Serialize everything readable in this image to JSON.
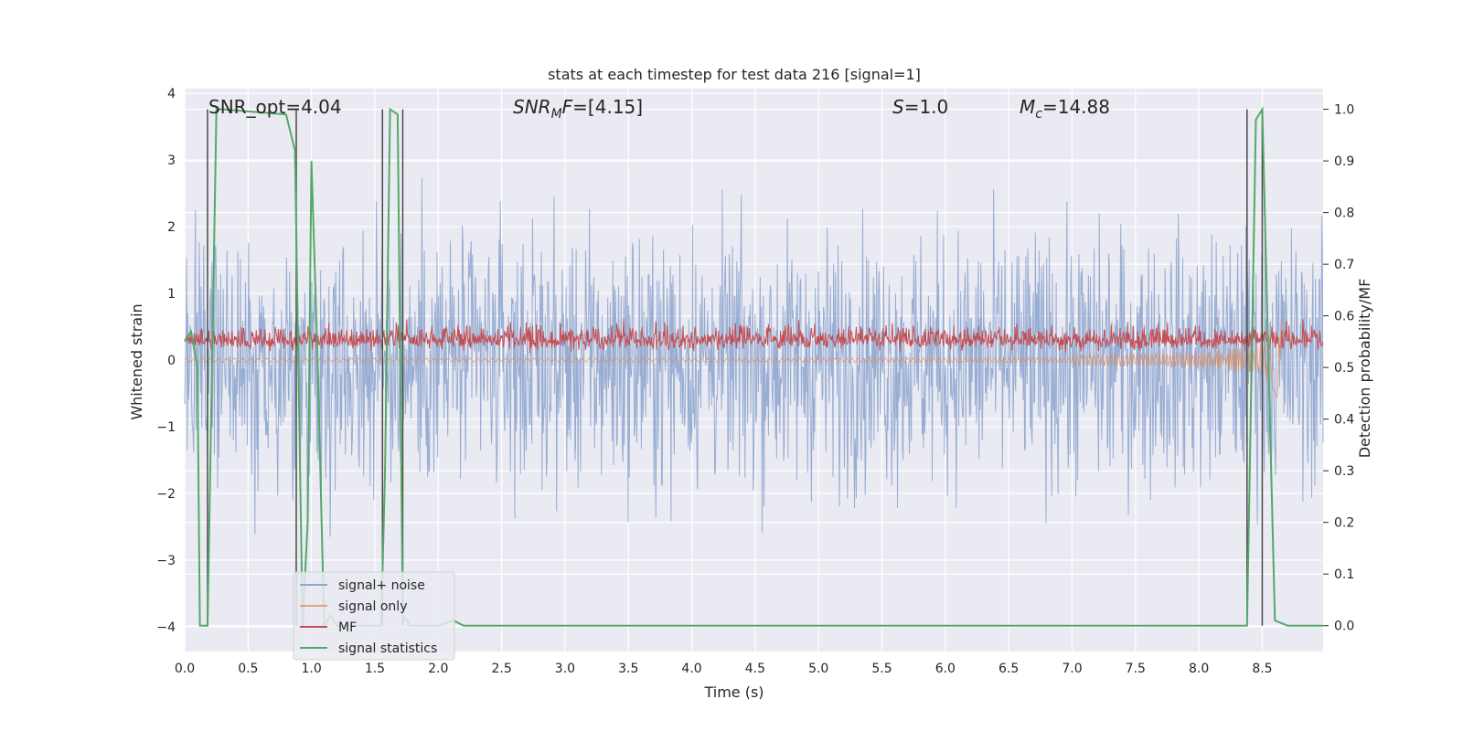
{
  "chart_data": {
    "type": "line",
    "title": "stats at each timestep for test data 216 [signal=1]",
    "xlabel": "Time (s)",
    "ylabel": "Whitened strain",
    "ylabel_right": "Detection probability/MF",
    "xlim": [
      0,
      8.98
    ],
    "ylim": [
      -4.37,
      4.07
    ],
    "ylim_right": [
      -0.05,
      1.04
    ],
    "x_ticks": [
      0.0,
      0.5,
      1.0,
      1.5,
      2.0,
      2.5,
      3.0,
      3.5,
      4.0,
      4.5,
      5.0,
      5.5,
      6.0,
      6.5,
      7.0,
      7.5,
      8.0,
      8.5
    ],
    "x_tick_labels": [
      "0.0",
      "0.5",
      "1.0",
      "1.5",
      "2.0",
      "2.5",
      "3.0",
      "3.5",
      "4.0",
      "4.5",
      "5.0",
      "5.5",
      "6.0",
      "6.5",
      "7.0",
      "7.5",
      "8.0",
      "8.5"
    ],
    "y_ticks": [
      -4,
      -3,
      -2,
      -1,
      0,
      1,
      2,
      3,
      4
    ],
    "y_tick_labels": [
      "−4",
      "−3",
      "−2",
      "−1",
      "0",
      "1",
      "2",
      "3",
      "4"
    ],
    "y_right_ticks": [
      0.0,
      0.1,
      0.2,
      0.3,
      0.4,
      0.5,
      0.6,
      0.7,
      0.8,
      0.9,
      1.0
    ],
    "y_right_tick_labels": [
      "0.0",
      "0.1",
      "0.2",
      "0.3",
      "0.4",
      "0.5",
      "0.6",
      "0.7",
      "0.8",
      "0.9",
      "1.0"
    ],
    "grid": true,
    "annotations": {
      "snr_opt": "SNR_opt=4.04",
      "snr_mf_italic": "SNR",
      "snr_mf_sub": "M",
      "snr_mf_italic2": "F",
      "snr_mf_value": "=[4.15]",
      "s_italic": "S",
      "s_value": "=1.0",
      "mc_italic": "M",
      "mc_sub": "c",
      "mc_value": "=14.88"
    },
    "legend": {
      "placement": "lower-left",
      "entries": [
        "signal+ noise",
        "signal only",
        "MF",
        "signal statistics"
      ]
    },
    "colors": {
      "signal_noise": "#8fa6cf",
      "signal_only": "#dd8452",
      "mf": "#c44e52",
      "stats": "#55a868",
      "vlines": "#4a4a4a",
      "background": "#eaeaf2",
      "grid": "#ffffff"
    },
    "series": [
      {
        "name": "signal statistics",
        "axis": "right",
        "x": [
          0.0,
          0.05,
          0.1,
          0.12,
          0.18,
          0.25,
          0.3,
          0.8,
          0.87,
          0.93,
          0.97,
          1.0,
          1.05,
          1.1,
          1.15,
          1.2,
          1.5,
          1.55,
          1.58,
          1.62,
          1.68,
          1.72,
          1.78,
          2.0,
          2.12,
          2.2,
          2.3,
          2.5,
          8.38,
          8.45,
          8.5,
          8.55,
          8.6,
          8.7,
          8.98
        ],
        "y": [
          0.55,
          0.57,
          0.5,
          0.0,
          0.0,
          1.0,
          1.0,
          0.99,
          0.92,
          0.0,
          0.2,
          0.9,
          0.5,
          0.0,
          0.02,
          0.0,
          0.0,
          0.0,
          0.3,
          1.0,
          0.99,
          0.02,
          0.0,
          0.0,
          0.01,
          0.0,
          0.0,
          0.0,
          0.0,
          0.98,
          1.0,
          0.5,
          0.01,
          0.0,
          0.0
        ]
      }
    ],
    "vertical_markers_x": [
      0.18,
      0.88,
      1.56,
      1.72,
      8.38,
      8.5
    ]
  }
}
